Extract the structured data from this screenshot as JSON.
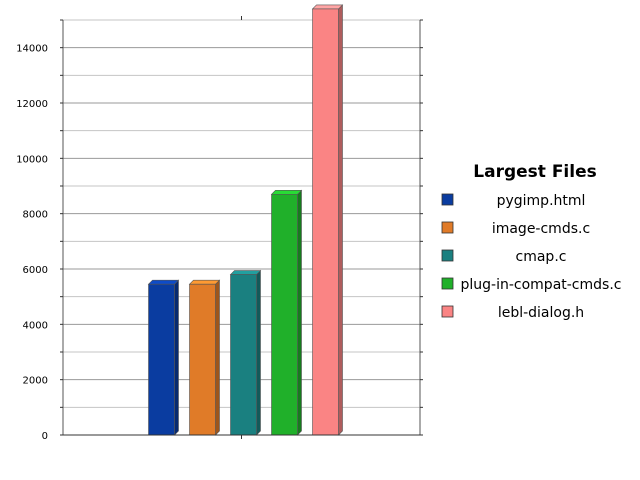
{
  "chart_data": {
    "type": "bar",
    "title": "",
    "xlabel": "",
    "ylabel": "",
    "ylim": [
      0,
      15000
    ],
    "yticks": [
      0,
      2000,
      4000,
      6000,
      8000,
      10000,
      12000,
      14000
    ],
    "grid": true,
    "legend": {
      "title": "Largest Files",
      "placement": "right"
    },
    "series": [
      {
        "name": "pygimp.html",
        "value": 5450,
        "color": "#0a3ca0"
      },
      {
        "name": "image-cmds.c",
        "value": 5450,
        "color": "#e07b28"
      },
      {
        "name": "cmap.c",
        "value": 5800,
        "color": "#1a8080"
      },
      {
        "name": "plug-in-compat-cmds.c",
        "value": 8700,
        "color": "#20b02a"
      },
      {
        "name": "lebl-dialog.h",
        "value": 15400,
        "color": "#fa8484"
      }
    ]
  }
}
